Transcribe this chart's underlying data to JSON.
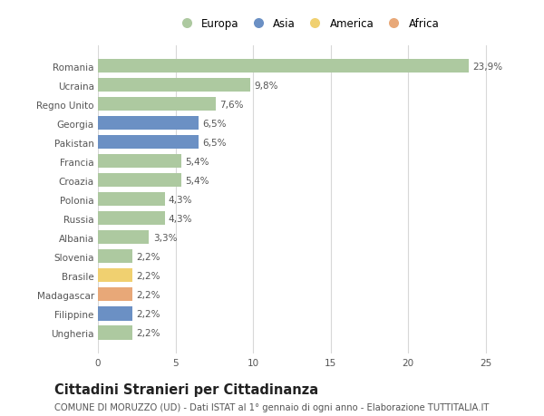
{
  "countries": [
    "Romania",
    "Ucraina",
    "Regno Unito",
    "Georgia",
    "Pakistan",
    "Francia",
    "Croazia",
    "Polonia",
    "Russia",
    "Albania",
    "Slovenia",
    "Brasile",
    "Madagascar",
    "Filippine",
    "Ungheria"
  ],
  "values": [
    23.9,
    9.8,
    7.6,
    6.5,
    6.5,
    5.4,
    5.4,
    4.3,
    4.3,
    3.3,
    2.2,
    2.2,
    2.2,
    2.2,
    2.2
  ],
  "labels": [
    "23,9%",
    "9,8%",
    "7,6%",
    "6,5%",
    "6,5%",
    "5,4%",
    "5,4%",
    "4,3%",
    "4,3%",
    "3,3%",
    "2,2%",
    "2,2%",
    "2,2%",
    "2,2%",
    "2,2%"
  ],
  "continents": [
    "Europa",
    "Europa",
    "Europa",
    "Asia",
    "Asia",
    "Europa",
    "Europa",
    "Europa",
    "Europa",
    "Europa",
    "Europa",
    "America",
    "Africa",
    "Asia",
    "Europa"
  ],
  "continent_colors": {
    "Europa": "#adc9a0",
    "Asia": "#6b90c4",
    "America": "#f0d070",
    "Africa": "#e8a878"
  },
  "legend_order": [
    "Europa",
    "Asia",
    "America",
    "Africa"
  ],
  "title": "Cittadini Stranieri per Cittadinanza",
  "subtitle": "COMUNE DI MORUZZO (UD) - Dati ISTAT al 1° gennaio di ogni anno - Elaborazione TUTTITALIA.IT",
  "xlim": [
    0,
    27
  ],
  "xticks": [
    0,
    5,
    10,
    15,
    20,
    25
  ],
  "bar_height": 0.72,
  "figsize": [
    6.0,
    4.6
  ],
  "dpi": 100,
  "bg_color": "#ffffff",
  "grid_color": "#d8d8d8",
  "title_fontsize": 10.5,
  "subtitle_fontsize": 7.2,
  "label_fontsize": 7.5,
  "tick_fontsize": 7.5,
  "legend_fontsize": 8.5
}
